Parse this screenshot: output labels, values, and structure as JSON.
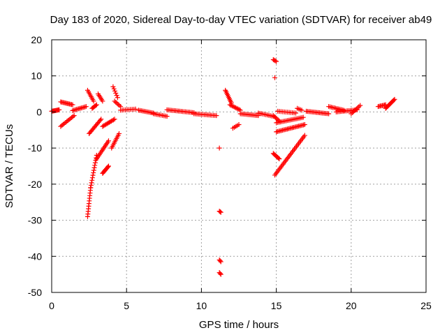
{
  "chart_data": {
    "type": "scatter",
    "title": "Day 183 of 2020, Sidereal Day-to-day VTEC variation (SDTVAR) for receiver ab49",
    "xlabel": "GPS time / hours",
    "ylabel": "SDTVAR / TECUs",
    "xlim": [
      0,
      25
    ],
    "ylim": [
      -50,
      20
    ],
    "xticks": [
      0,
      5,
      10,
      15,
      20,
      25
    ],
    "yticks": [
      -50,
      -40,
      -30,
      -20,
      -10,
      0,
      10,
      20
    ],
    "grid": true,
    "marker": "+",
    "color": "#ff0000",
    "series": [
      {
        "name": "SDTVAR",
        "segments": [
          {
            "x": [
              0.0,
              0.5
            ],
            "y": [
              0.2,
              0.6
            ],
            "n": 10
          },
          {
            "x": [
              0.6,
              1.4
            ],
            "y": [
              2.8,
              2.0
            ],
            "n": 12
          },
          {
            "x": [
              0.6,
              1.5
            ],
            "y": [
              -4.0,
              -1.0
            ],
            "n": 12
          },
          {
            "x": [
              1.4,
              2.3
            ],
            "y": [
              0.4,
              1.5
            ],
            "n": 12
          },
          {
            "x": [
              2.4,
              2.6
            ],
            "y": [
              -29.0,
              -21.0
            ],
            "n": 12
          },
          {
            "x": [
              2.6,
              3.0
            ],
            "y": [
              -21.0,
              -12.0
            ],
            "n": 14
          },
          {
            "x": [
              2.5,
              3.3
            ],
            "y": [
              -6.0,
              -2.0
            ],
            "n": 14
          },
          {
            "x": [
              2.4,
              2.8
            ],
            "y": [
              6.0,
              3.0
            ],
            "n": 8
          },
          {
            "x": [
              2.7,
              3.0
            ],
            "y": [
              1.0,
              2.0
            ],
            "n": 6
          },
          {
            "x": [
              3.0,
              3.8
            ],
            "y": [
              -13.0,
              -8.0
            ],
            "n": 14
          },
          {
            "x": [
              3.1,
              3.4
            ],
            "y": [
              5.0,
              3.0
            ],
            "n": 6
          },
          {
            "x": [
              3.4,
              4.2
            ],
            "y": [
              -4.0,
              -2.0
            ],
            "n": 12
          },
          {
            "x": [
              3.4,
              3.8
            ],
            "y": [
              -17.0,
              -15.0
            ],
            "n": 10
          },
          {
            "x": [
              4.0,
              4.5
            ],
            "y": [
              -10.0,
              -6.0
            ],
            "n": 10
          },
          {
            "x": [
              4.1,
              4.4
            ],
            "y": [
              7.0,
              4.0
            ],
            "n": 6
          },
          {
            "x": [
              4.2,
              4.6
            ],
            "y": [
              3.0,
              1.5
            ],
            "n": 6
          },
          {
            "x": [
              4.6,
              5.6
            ],
            "y": [
              0.5,
              0.8
            ],
            "n": 10
          },
          {
            "x": [
              5.8,
              6.8
            ],
            "y": [
              0.5,
              -0.3
            ],
            "n": 12
          },
          {
            "x": [
              6.8,
              7.7
            ],
            "y": [
              -0.5,
              -1.2
            ],
            "n": 10
          },
          {
            "x": [
              7.7,
              9.5
            ],
            "y": [
              0.6,
              -0.2
            ],
            "n": 20
          },
          {
            "x": [
              9.5,
              11.0
            ],
            "y": [
              -0.5,
              -1.0
            ],
            "n": 16
          },
          {
            "x": [
              11.2,
              11.3
            ],
            "y": [
              -10.0,
              -10.0
            ],
            "n": 1
          },
          {
            "x": [
              11.2,
              11.3
            ],
            "y": [
              -27.5,
              -27.8
            ],
            "n": 3
          },
          {
            "x": [
              11.2,
              11.3
            ],
            "y": [
              -41.0,
              -41.5
            ],
            "n": 3
          },
          {
            "x": [
              11.2,
              11.3
            ],
            "y": [
              -44.5,
              -45.0
            ],
            "n": 3
          },
          {
            "x": [
              11.6,
              12.0
            ],
            "y": [
              6.0,
              2.5
            ],
            "n": 10
          },
          {
            "x": [
              11.9,
              12.6
            ],
            "y": [
              2.0,
              0.5
            ],
            "n": 10
          },
          {
            "x": [
              12.1,
              12.5
            ],
            "y": [
              -4.5,
              -3.5
            ],
            "n": 5
          },
          {
            "x": [
              12.6,
              13.8
            ],
            "y": [
              -0.5,
              -1.0
            ],
            "n": 14
          },
          {
            "x": [
              13.8,
              14.9
            ],
            "y": [
              -0.3,
              -1.3
            ],
            "n": 12
          },
          {
            "x": [
              14.8,
              15.0
            ],
            "y": [
              14.5,
              14.0
            ],
            "n": 4
          },
          {
            "x": [
              14.9,
              14.95
            ],
            "y": [
              9.5,
              9.5
            ],
            "n": 1
          },
          {
            "x": [
              14.8,
              15.2
            ],
            "y": [
              -1.0,
              -2.5
            ],
            "n": 6
          },
          {
            "x": [
              14.8,
              15.2
            ],
            "y": [
              -11.5,
              -13.0
            ],
            "n": 8
          },
          {
            "x": [
              14.9,
              16.9
            ],
            "y": [
              -17.5,
              -6.5
            ],
            "n": 30
          },
          {
            "x": [
              15.0,
              16.9
            ],
            "y": [
              -5.5,
              -3.5
            ],
            "n": 24
          },
          {
            "x": [
              15.0,
              16.8
            ],
            "y": [
              -3.0,
              -1.5
            ],
            "n": 20
          },
          {
            "x": [
              15.1,
              16.3
            ],
            "y": [
              0.2,
              -0.3
            ],
            "n": 12
          },
          {
            "x": [
              16.4,
              16.7
            ],
            "y": [
              1.0,
              0.5
            ],
            "n": 4
          },
          {
            "x": [
              17.0,
              18.5
            ],
            "y": [
              0.2,
              -0.5
            ],
            "n": 18
          },
          {
            "x": [
              18.5,
              19.5
            ],
            "y": [
              1.5,
              0.5
            ],
            "n": 12
          },
          {
            "x": [
              19.0,
              20.4
            ],
            "y": [
              0.0,
              0.6
            ],
            "n": 16
          },
          {
            "x": [
              20.0,
              20.6
            ],
            "y": [
              -0.5,
              1.8
            ],
            "n": 8
          },
          {
            "x": [
              21.8,
              22.3
            ],
            "y": [
              1.5,
              2.0
            ],
            "n": 8
          },
          {
            "x": [
              22.3,
              22.9
            ],
            "y": [
              1.0,
              3.5
            ],
            "n": 12
          }
        ]
      }
    ]
  }
}
